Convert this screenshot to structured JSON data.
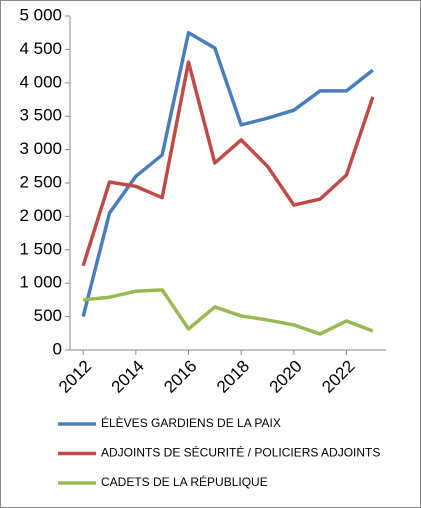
{
  "chart_data": {
    "type": "line",
    "x": [
      2012,
      2013,
      2014,
      2015,
      2016,
      2017,
      2018,
      2019,
      2020,
      2021,
      2022,
      2023
    ],
    "series": [
      {
        "name": "ÉLÈVES GARDIENS DE LA PAIX",
        "color": "#4a7ebb",
        "values": [
          500,
          2050,
          2600,
          2920,
          4750,
          4520,
          3370,
          3470,
          3590,
          3880,
          3880,
          4190
        ]
      },
      {
        "name": "ADJOINTS DE SÉCURITÉ / POLICIERS ADJOINTS",
        "color": "#be4b48",
        "values": [
          1260,
          2515,
          2450,
          2280,
          4310,
          2800,
          3145,
          2750,
          2170,
          2260,
          2620,
          3790
        ]
      },
      {
        "name": "CADETS DE LA RÉPUBLIQUE",
        "color": "#98b954",
        "values": [
          750,
          790,
          880,
          900,
          315,
          645,
          510,
          450,
          375,
          240,
          435,
          285
        ]
      }
    ],
    "xlim": [
      2011.5,
      2023.5
    ],
    "xticks": [
      2012,
      2014,
      2016,
      2018,
      2020,
      2022
    ],
    "ylim": [
      0,
      5000
    ],
    "yticks": [
      0,
      500,
      {
        "value": 1000,
        "label": "1 000"
      },
      {
        "value": 1500,
        "label": "1 500"
      },
      {
        "value": 2000,
        "label": "2 000"
      },
      {
        "value": 2500,
        "label": "2 500"
      },
      {
        "value": 3000,
        "label": "3 000"
      },
      {
        "value": 3500,
        "label": "3 500"
      },
      {
        "value": 4000,
        "label": "4 000"
      },
      {
        "value": 4500,
        "label": "4 500"
      },
      {
        "value": 5000,
        "label": "5 000"
      }
    ],
    "grid": false,
    "legend": "bottom"
  }
}
